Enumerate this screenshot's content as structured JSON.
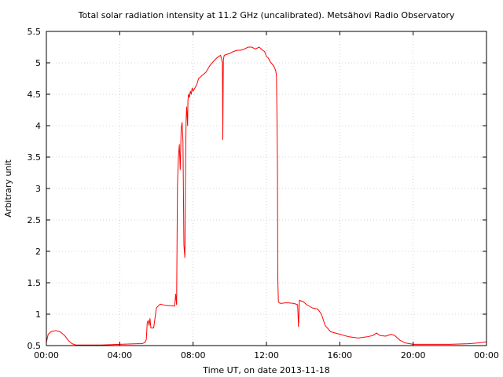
{
  "chart_data": {
    "type": "line",
    "title": "Total solar radiation intensity at 11.2 GHz (uncalibrated). Metsähovi Radio Observatory",
    "xlabel": "Time UT, on date 2013-11-18",
    "ylabel": "Arbitrary unit",
    "x_unit": "hours UT",
    "xlim": [
      0,
      24
    ],
    "ylim": [
      0.5,
      5.5
    ],
    "x_ticks": [
      0,
      4,
      8,
      12,
      16,
      20,
      24
    ],
    "x_tick_labels": [
      "00:00",
      "04:00",
      "08:00",
      "12:00",
      "16:00",
      "20:00",
      "00:00"
    ],
    "y_ticks": [
      0.5,
      1,
      1.5,
      2,
      2.5,
      3,
      3.5,
      4,
      4.5,
      5,
      5.5
    ],
    "y_tick_labels": [
      "0.5",
      "1",
      "1.5",
      "2",
      "2.5",
      "3",
      "3.5",
      "4",
      "4.5",
      "5",
      "5.5"
    ],
    "grid": true,
    "legend": "none",
    "series": [
      {
        "color": "#ff0000",
        "x": [
          0.0,
          0.1,
          0.25,
          0.5,
          0.75,
          1.0,
          1.2,
          1.4,
          1.6,
          1.8,
          2.0,
          3.0,
          4.0,
          5.0,
          5.2,
          5.3,
          5.4,
          5.45,
          5.5,
          5.55,
          5.6,
          5.65,
          5.7,
          5.85,
          6.0,
          6.2,
          6.5,
          7.0,
          7.05,
          7.1,
          7.15,
          7.2,
          7.25,
          7.3,
          7.35,
          7.4,
          7.45,
          7.5,
          7.55,
          7.6,
          7.62,
          7.65,
          7.7,
          7.72,
          7.75,
          7.8,
          7.85,
          7.9,
          7.95,
          8.0,
          8.1,
          8.2,
          8.3,
          8.5,
          8.7,
          8.9,
          9.1,
          9.3,
          9.5,
          9.6,
          9.62,
          9.65,
          9.7,
          10.0,
          10.2,
          10.4,
          10.6,
          10.8,
          11.0,
          11.2,
          11.4,
          11.6,
          11.8,
          11.9,
          12.0,
          12.1,
          12.2,
          12.4,
          12.5,
          12.55,
          12.6,
          12.62,
          12.65,
          12.7,
          12.8,
          13.0,
          13.2,
          13.5,
          13.7,
          13.75,
          13.8,
          14.0,
          14.2,
          14.5,
          14.8,
          15.0,
          15.2,
          15.5,
          16.0,
          16.5,
          17.0,
          17.5,
          17.8,
          18.0,
          18.2,
          18.5,
          18.8,
          19.0,
          19.3,
          19.6,
          20.0,
          21.0,
          22.0,
          23.0,
          23.5,
          24.0
        ],
        "y": [
          0.55,
          0.68,
          0.72,
          0.74,
          0.72,
          0.66,
          0.58,
          0.53,
          0.51,
          0.51,
          0.51,
          0.51,
          0.52,
          0.53,
          0.53,
          0.54,
          0.56,
          0.6,
          0.86,
          0.9,
          0.82,
          0.93,
          0.78,
          0.78,
          1.1,
          1.16,
          1.14,
          1.13,
          1.32,
          1.15,
          3.05,
          3.5,
          3.7,
          3.3,
          3.95,
          4.05,
          3.75,
          2.1,
          1.9,
          3.6,
          4.1,
          4.3,
          4.0,
          4.4,
          4.5,
          4.45,
          4.55,
          4.5,
          4.6,
          4.55,
          4.6,
          4.65,
          4.75,
          4.8,
          4.85,
          4.95,
          5.02,
          5.08,
          5.12,
          5.0,
          3.78,
          5.05,
          5.12,
          5.15,
          5.18,
          5.2,
          5.2,
          5.22,
          5.25,
          5.25,
          5.22,
          5.25,
          5.2,
          5.18,
          5.1,
          5.08,
          5.02,
          4.95,
          4.88,
          4.8,
          3.45,
          1.55,
          1.2,
          1.18,
          1.17,
          1.18,
          1.18,
          1.17,
          1.15,
          0.8,
          1.22,
          1.2,
          1.15,
          1.1,
          1.08,
          1.0,
          0.82,
          0.72,
          0.68,
          0.64,
          0.62,
          0.64,
          0.66,
          0.7,
          0.66,
          0.65,
          0.68,
          0.66,
          0.58,
          0.54,
          0.52,
          0.52,
          0.52,
          0.53,
          0.54,
          0.56
        ]
      }
    ]
  }
}
